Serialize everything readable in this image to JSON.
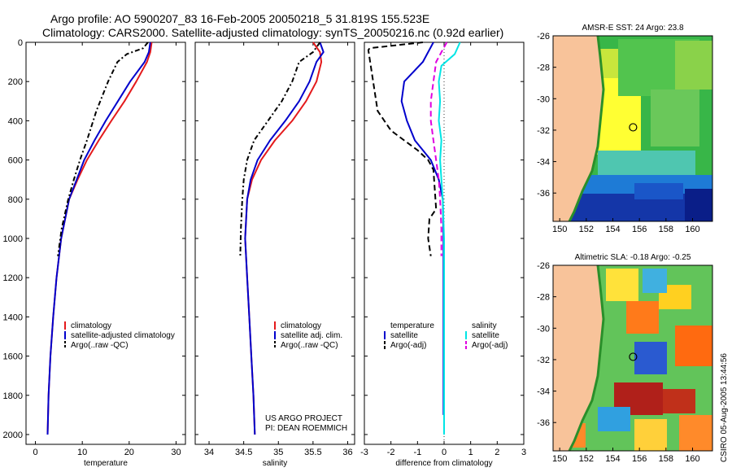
{
  "title": {
    "line1": "Argo profile: AO 5900207_83 16-Feb-2005 20050218_5 31.819S 155.523E",
    "line2": "Climatology: CARS2000. Satellite-adjusted climatology: synTS_20050216.nc (0.92d earlier)"
  },
  "footer_stamp": "CSIRO 05-Aug-2005 13:44:56",
  "colors": {
    "red": "#e41a1c",
    "blue": "#0000cc",
    "black": "#000000",
    "cyan": "#00e5e5",
    "magenta": "#e000e0",
    "land": "#f8c39a",
    "coast": "#2a8f2a"
  },
  "chart_data": [
    {
      "type": "line",
      "id": "temperature",
      "xlabel": "temperature",
      "ylabel": "",
      "xlim": [
        -2,
        32
      ],
      "ylim": [
        0,
        2050
      ],
      "y_reversed": true,
      "xticks": [
        0,
        10,
        20,
        30
      ],
      "yticks": [
        0,
        200,
        400,
        600,
        800,
        1000,
        1200,
        1400,
        1600,
        1800,
        2000
      ],
      "legend": [
        "climatology",
        "satellite-adjusted climatology",
        "Argo(..raw -QC)"
      ],
      "series": [
        {
          "name": "climatology",
          "color": "red",
          "dash": "",
          "x": [
            24.8,
            24.5,
            23.8,
            21.5,
            19.0,
            16.2,
            13.5,
            11.0,
            9.0,
            7.2,
            5.5,
            4.5,
            3.8,
            3.2,
            2.8,
            2.6
          ],
          "y": [
            0,
            50,
            100,
            200,
            300,
            400,
            500,
            600,
            700,
            800,
            1000,
            1200,
            1400,
            1600,
            1800,
            2000
          ]
        },
        {
          "name": "satellite",
          "color": "blue",
          "dash": "",
          "x": [
            24.5,
            24.2,
            23.3,
            20.2,
            17.6,
            15.0,
            12.6,
            10.4,
            8.8,
            7.2,
            5.5,
            4.5,
            3.8,
            3.2,
            2.8,
            2.6
          ],
          "y": [
            0,
            50,
            100,
            200,
            300,
            400,
            500,
            600,
            700,
            800,
            1000,
            1200,
            1400,
            1600,
            1800,
            2000
          ]
        },
        {
          "name": "Argo",
          "color": "black",
          "dash": "6,3,2,3",
          "x": [
            24.0,
            23.0,
            19.5,
            17.5,
            15.5,
            13.0,
            11.0,
            9.5,
            8.2,
            7.0,
            5.6,
            4.8
          ],
          "y": [
            0,
            30,
            60,
            100,
            200,
            350,
            500,
            600,
            700,
            800,
            950,
            1090
          ]
        }
      ]
    },
    {
      "type": "line",
      "id": "salinity",
      "xlabel": "salinity",
      "xlim": [
        33.8,
        36.1
      ],
      "ylim": [
        0,
        2050
      ],
      "y_reversed": true,
      "xticks": [
        34,
        34.5,
        35,
        35.5,
        36
      ],
      "legend": [
        "climatology",
        "satellite adj. clim.",
        "Argo(..raw -QC)"
      ],
      "annotation": [
        "US ARGO PROJECT",
        "PI: DEAN ROEMMICH"
      ],
      "series": [
        {
          "name": "climatology",
          "color": "red",
          "dash": "",
          "x": [
            35.5,
            35.6,
            35.62,
            35.55,
            35.4,
            35.2,
            34.95,
            34.75,
            34.62,
            34.55,
            34.52,
            34.55,
            34.58,
            34.61,
            34.64,
            34.66
          ],
          "y": [
            0,
            50,
            100,
            200,
            300,
            400,
            500,
            600,
            700,
            800,
            1000,
            1200,
            1400,
            1600,
            1800,
            2000
          ]
        },
        {
          "name": "satellite",
          "color": "blue",
          "dash": "",
          "x": [
            35.6,
            35.65,
            35.55,
            35.45,
            35.3,
            35.1,
            34.88,
            34.7,
            34.6,
            34.55,
            34.52,
            34.55,
            34.58,
            34.61,
            34.64,
            34.66
          ],
          "y": [
            0,
            50,
            100,
            200,
            300,
            400,
            500,
            600,
            700,
            800,
            1000,
            1200,
            1400,
            1600,
            1800,
            2000
          ]
        },
        {
          "name": "Argo",
          "color": "black",
          "dash": "6,3,2,3",
          "x": [
            35.6,
            35.5,
            35.3,
            35.2,
            35.05,
            34.85,
            34.65,
            34.55,
            34.5,
            34.48,
            34.46,
            34.45
          ],
          "y": [
            0,
            50,
            100,
            200,
            300,
            400,
            500,
            600,
            700,
            800,
            950,
            1090
          ]
        }
      ]
    },
    {
      "type": "line",
      "id": "difference",
      "xlabel": "difference from climatology",
      "xlim": [
        -3,
        3
      ],
      "ylim": [
        0,
        2050
      ],
      "y_reversed": true,
      "xticks": [
        -3,
        -2,
        -1,
        0,
        1,
        2,
        3
      ],
      "legend_left": [
        "temperature",
        "satellite",
        "Argo(-adj)"
      ],
      "legend_right": [
        "salinity",
        "satellite",
        "Argo(-adj)"
      ],
      "series": [
        {
          "name": "temperature satellite",
          "color": "blue",
          "dash": "",
          "x": [
            -0.4,
            -0.6,
            -0.8,
            -1.5,
            -1.6,
            -1.4,
            -1.1,
            -0.5,
            -0.2,
            -0.05,
            -0.02,
            -0.02,
            -0.02,
            -0.02,
            -0.02
          ],
          "y": [
            0,
            50,
            100,
            200,
            300,
            400,
            500,
            600,
            700,
            800,
            1000,
            1200,
            1400,
            1600,
            1900
          ]
        },
        {
          "name": "temperature Argo",
          "color": "black",
          "dash": "7,4",
          "x": [
            -0.8,
            -2.8,
            -2.85,
            -2.5,
            -2.0,
            -1.5,
            -1.0,
            -0.6,
            -0.4,
            -0.3,
            -0.55,
            -0.6,
            -0.5
          ],
          "y": [
            0,
            30,
            40,
            350,
            450,
            500,
            550,
            600,
            650,
            850,
            900,
            1000,
            1090
          ]
        },
        {
          "name": "salinity satellite",
          "color": "cyan",
          "dash": "",
          "x": [
            0.6,
            0.4,
            -0.1,
            -0.2,
            -0.15,
            -0.2,
            -0.1,
            -0.15,
            -0.1,
            -0.05,
            0,
            0,
            0,
            0,
            0
          ],
          "y": [
            0,
            60,
            120,
            200,
            300,
            400,
            500,
            600,
            700,
            800,
            1000,
            1200,
            1400,
            1600,
            2000
          ]
        },
        {
          "name": "salinity Argo",
          "color": "magenta",
          "dash": "7,4",
          "x": [
            0.1,
            -0.3,
            -0.4,
            -0.5,
            -0.5,
            -0.4,
            -0.3,
            -0.2,
            -0.15,
            -0.1,
            -0.1
          ],
          "y": [
            0,
            100,
            200,
            300,
            400,
            500,
            600,
            700,
            800,
            950,
            1090
          ]
        }
      ]
    },
    {
      "type": "heatmap",
      "id": "sst_map",
      "title": "AMSR-E SST: 24 Argo: 23.8",
      "xlim": [
        149.5,
        161.5
      ],
      "ylim": [
        -37.8,
        -26
      ],
      "xticks": [
        150,
        152,
        154,
        156,
        158,
        160
      ],
      "yticks": [
        -26,
        -28,
        -30,
        -32,
        -34,
        -36
      ],
      "float_position": [
        155.523,
        -31.819
      ]
    },
    {
      "type": "heatmap",
      "id": "sla_map",
      "title": "Altimetric SLA: -0.18 Argo: -0.25",
      "xlim": [
        149.5,
        161.5
      ],
      "ylim": [
        -37.8,
        -26
      ],
      "xticks": [
        150,
        152,
        154,
        156,
        158,
        160
      ],
      "yticks": [
        -26,
        -28,
        -30,
        -32,
        -34,
        -36
      ],
      "float_position": [
        155.523,
        -31.819
      ]
    }
  ]
}
